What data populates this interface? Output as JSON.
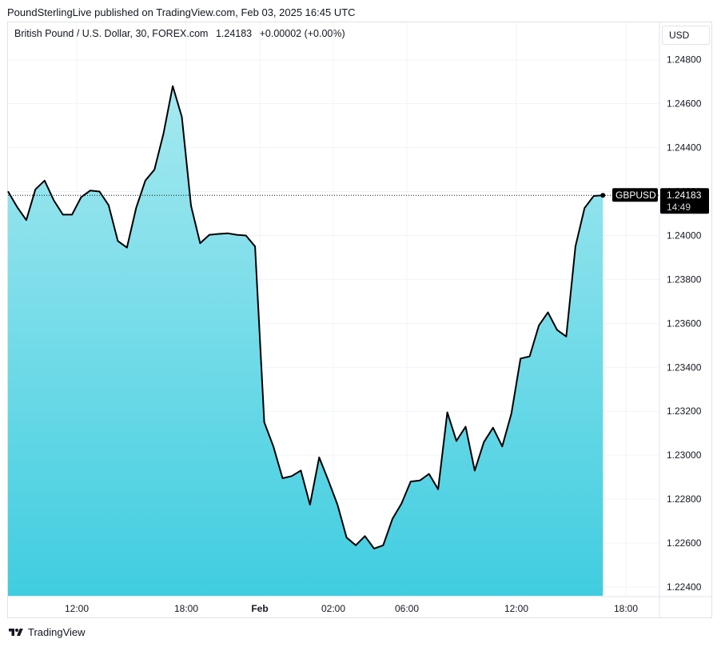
{
  "publisher_line": "PoundSterlingLive published on TradingView.com, Feb 03, 2025 16:45 UTC",
  "legend": {
    "symbol": "British Pound / U.S. Dollar, 30, FOREX.com",
    "price": "1.24183",
    "change": "+0.00002 (+0.00%)"
  },
  "currency_button": "USD",
  "footer": {
    "brand": "TradingView",
    "logo_icon": "tradingview-logo-icon"
  },
  "colors": {
    "line": "#000000",
    "area_top": "#a6e9f0",
    "area_bottom": "#40cde0",
    "price_tag_bg": "#000000",
    "grid": "#f0f3fa"
  },
  "chart_data": {
    "type": "area",
    "title": "British Pound / U.S. Dollar, 30, FOREX.com",
    "xlabel": "",
    "ylabel": "",
    "x_ticks": [
      "12:00",
      "18:00",
      "Feb",
      "02:00",
      "06:00",
      "12:00",
      "18:00"
    ],
    "y_ticks": [
      "1.24800",
      "1.24600",
      "1.24400",
      "1.24200",
      "1.24000",
      "1.23800",
      "1.23600",
      "1.23400",
      "1.23200",
      "1.23000",
      "1.22800",
      "1.22600",
      "1.22400"
    ],
    "ylim": [
      1.2236,
      1.2497
    ],
    "grid": true,
    "current_price_label": {
      "symbol": "GBPUSD",
      "price": "1.24183",
      "countdown": "14:49"
    },
    "series": [
      {
        "values": [
          1.24201,
          1.2413,
          1.2407,
          1.2421,
          1.2425,
          1.2416,
          1.24095,
          1.24095,
          1.24175,
          1.24205,
          1.242,
          1.24138,
          1.23975,
          1.23945,
          1.24125,
          1.2425,
          1.243,
          1.24465,
          1.2468,
          1.2454,
          1.24135,
          1.23965,
          1.24003,
          1.24007,
          1.2401,
          1.24003,
          1.24,
          1.2395,
          1.2315,
          1.2304,
          1.22895,
          1.22905,
          1.2293,
          1.22775,
          1.2299,
          1.22885,
          1.22775,
          1.22625,
          1.2259,
          1.22632,
          1.22575,
          1.2259,
          1.2271,
          1.2278,
          1.2288,
          1.22885,
          1.22915,
          1.22845,
          1.23195,
          1.23065,
          1.2313,
          1.2293,
          1.2306,
          1.23125,
          1.2304,
          1.2319,
          1.2344,
          1.2345,
          1.2359,
          1.2365,
          1.2357,
          1.2354,
          1.2395,
          1.24125,
          1.2418,
          1.24183
        ]
      }
    ]
  }
}
